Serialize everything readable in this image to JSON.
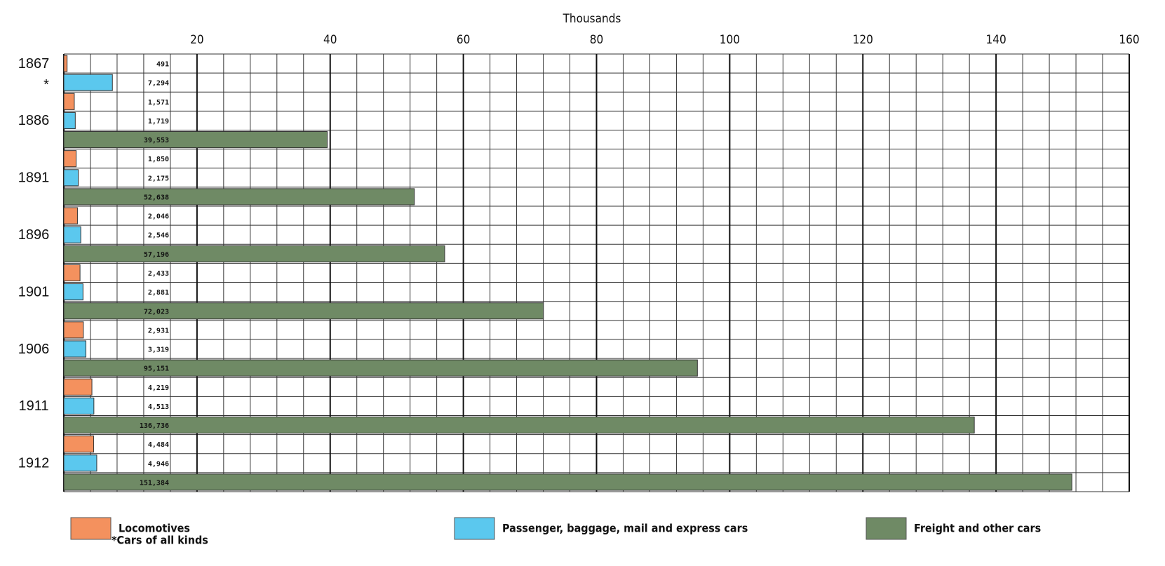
{
  "chart_data": {
    "type": "bar",
    "orientation": "horizontal",
    "title": "Thousands",
    "categories": [
      "1867",
      "1886",
      "1891",
      "1896",
      "1901",
      "1906",
      "1911",
      "1912"
    ],
    "category_notes": [
      "*",
      null,
      null,
      null,
      null,
      null,
      null,
      null
    ],
    "series": [
      {
        "name": "Locomotives",
        "color": "#f4915e",
        "values": [
          0.491,
          1.571,
          1.85,
          2.046,
          2.433,
          2.931,
          4.219,
          4.484
        ],
        "value_labels": [
          "491",
          "1,571",
          "1,850",
          "2,046",
          "2,433",
          "2,931",
          "4,219",
          "4,484"
        ]
      },
      {
        "name": "Passenger, baggage, mail and express cars",
        "color": "#5bc8ee",
        "values": [
          7.294,
          1.719,
          2.175,
          2.546,
          2.881,
          3.319,
          4.513,
          4.946
        ],
        "value_labels": [
          "7,294",
          "1,719",
          "2,175",
          "2,546",
          "2,881",
          "3,319",
          "4,513",
          "4,946"
        ]
      },
      {
        "name": "Freight and other cars",
        "color": "#6f8a65",
        "values": [
          null,
          39.553,
          52.638,
          57.196,
          72.023,
          95.151,
          136.736,
          151.384
        ],
        "value_labels": [
          null,
          "39,553",
          "52,638",
          "57,196",
          "72,023",
          "95,151",
          "136,736",
          "151,384"
        ]
      }
    ],
    "xlim": [
      0,
      160
    ],
    "xticks": [
      20,
      40,
      60,
      80,
      100,
      120,
      140,
      160
    ],
    "grid": true,
    "legend_position": "bottom",
    "footnote": "*Cars of all kinds"
  }
}
